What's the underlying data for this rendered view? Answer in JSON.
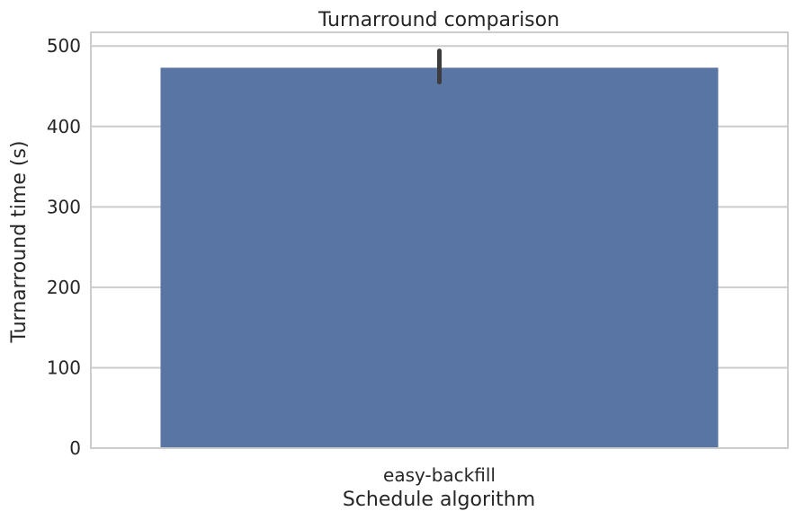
{
  "chart_data": {
    "type": "bar",
    "title": "Turnarround comparison",
    "xlabel": "Schedule algorithm",
    "ylabel": "Turnarround time (s)",
    "categories": [
      "easy-backfill"
    ],
    "values": [
      473
    ],
    "error_bars": [
      {
        "low": 455,
        "high": 494
      }
    ],
    "ylim": [
      0,
      517
    ],
    "yticks": [
      0,
      100,
      200,
      300,
      400,
      500
    ],
    "grid": true,
    "colors": {
      "bar": "#5975a4",
      "error_bar": "#3d3d3d",
      "grid": "#cccccc",
      "spine": "#cccccc"
    }
  }
}
